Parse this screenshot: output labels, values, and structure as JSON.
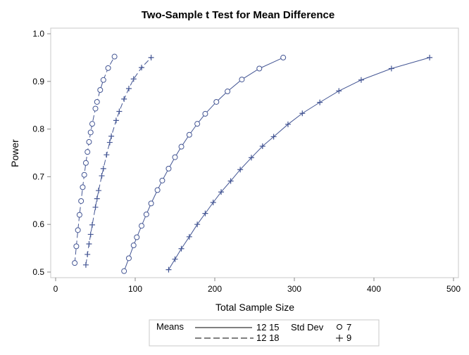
{
  "chart_data": {
    "type": "line",
    "title": "Two-Sample t Test for Mean Difference",
    "xlabel": "Total Sample Size",
    "ylabel": "Power",
    "xlim": [
      0,
      500
    ],
    "ylim": [
      0.5,
      1.0
    ],
    "xticks": [
      "0",
      "100",
      "200",
      "300",
      "400",
      "500"
    ],
    "yticks": [
      "0.5",
      "0.6",
      "0.7",
      "0.8",
      "0.9",
      "1.0"
    ],
    "grid": false,
    "color": "#445694",
    "legend": {
      "placement": "bottom",
      "means_title": "Means",
      "means_entries": [
        {
          "label": "12 15",
          "line": "solid"
        },
        {
          "label": "12 18",
          "line": "dashed"
        }
      ],
      "sd_title": "Std Dev",
      "sd_entries": [
        {
          "label": "7",
          "marker": "circle"
        },
        {
          "label": "9",
          "marker": "plus"
        }
      ]
    },
    "series": [
      {
        "means": "12 18",
        "sd": "7",
        "line": "dashed",
        "marker": "circle",
        "x": [
          24,
          26,
          28,
          30,
          32,
          34,
          36,
          38,
          40,
          42,
          44,
          46,
          50,
          52,
          56,
          60,
          66,
          74
        ],
        "y": [
          0.519,
          0.554,
          0.588,
          0.62,
          0.649,
          0.678,
          0.704,
          0.729,
          0.752,
          0.773,
          0.793,
          0.811,
          0.843,
          0.857,
          0.882,
          0.903,
          0.928,
          0.952
        ]
      },
      {
        "means": "12 18",
        "sd": "9",
        "line": "dashed",
        "marker": "plus",
        "x": [
          38,
          40,
          42,
          44,
          46,
          50,
          52,
          54,
          58,
          60,
          64,
          68,
          70,
          76,
          80,
          86,
          92,
          98,
          108,
          120
        ],
        "y": [
          0.515,
          0.537,
          0.559,
          0.579,
          0.599,
          0.636,
          0.654,
          0.671,
          0.702,
          0.717,
          0.746,
          0.772,
          0.785,
          0.818,
          0.837,
          0.863,
          0.885,
          0.905,
          0.929,
          0.95
        ]
      },
      {
        "means": "12 15",
        "sd": "7",
        "line": "solid",
        "marker": "circle",
        "x": [
          86,
          92,
          98,
          102,
          108,
          114,
          120,
          128,
          134,
          142,
          150,
          158,
          168,
          178,
          188,
          202,
          216,
          234,
          256,
          286
        ],
        "y": [
          0.502,
          0.529,
          0.556,
          0.573,
          0.597,
          0.621,
          0.644,
          0.672,
          0.692,
          0.717,
          0.741,
          0.763,
          0.788,
          0.811,
          0.832,
          0.857,
          0.879,
          0.904,
          0.927,
          0.95
        ]
      },
      {
        "means": "12 15",
        "sd": "9",
        "line": "solid",
        "marker": "plus",
        "x": [
          142,
          150,
          158,
          168,
          178,
          188,
          198,
          208,
          220,
          232,
          246,
          260,
          274,
          292,
          310,
          332,
          356,
          384,
          422,
          470
        ],
        "y": [
          0.505,
          0.527,
          0.549,
          0.574,
          0.6,
          0.623,
          0.646,
          0.668,
          0.691,
          0.715,
          0.74,
          0.764,
          0.784,
          0.81,
          0.833,
          0.856,
          0.88,
          0.903,
          0.927,
          0.95
        ]
      }
    ]
  }
}
